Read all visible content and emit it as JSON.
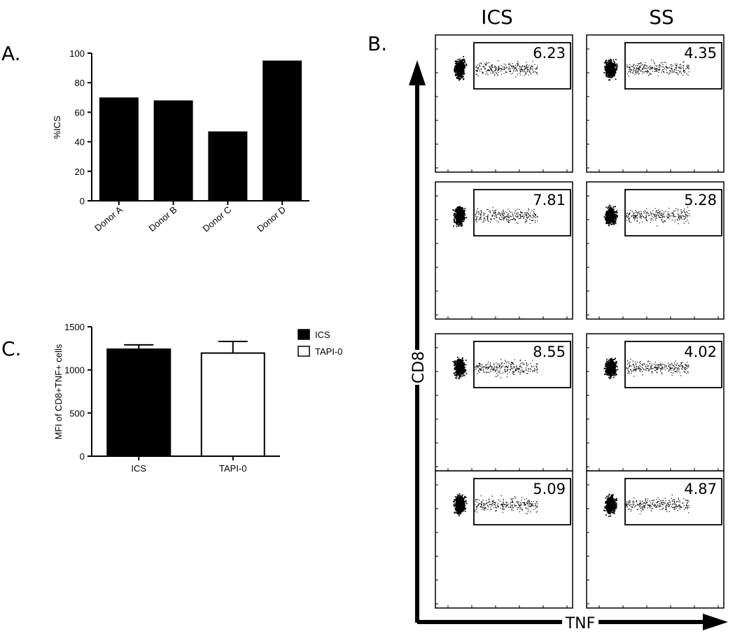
{
  "panels": {
    "a": "A.",
    "b": "B.",
    "c": "C."
  },
  "chart_data": [
    {
      "type": "bar",
      "categories": [
        "Donor A",
        "Donor B",
        "Donor C",
        "Donor D"
      ],
      "values": [
        70,
        68,
        47,
        95
      ],
      "xlabel": "",
      "ylabel": "%ICS",
      "ylim": [
        0,
        100
      ],
      "yticks": [
        0,
        20,
        40,
        60,
        80,
        100
      ],
      "grid": false,
      "bar_color": "#000000"
    },
    {
      "type": "bar",
      "categories": [
        "ICS",
        "TAPI-0"
      ],
      "series": [
        {
          "name": "ICS",
          "values": [
            1240,
            null
          ],
          "error": [
            50,
            null
          ],
          "fill": "#000000"
        },
        {
          "name": "TAPI-0",
          "values": [
            null,
            1195
          ],
          "error": [
            null,
            135
          ],
          "fill": "#ffffff"
        }
      ],
      "ylabel": "MFI of CD8+TNF+ cells",
      "ylim": [
        0,
        1500
      ],
      "yticks": [
        0,
        500,
        1000,
        1500
      ],
      "legend": "top-right",
      "grid": false
    }
  ],
  "flow": {
    "columns": [
      "ICS",
      "SS"
    ],
    "x_axis_label": "TNF",
    "y_axis_label": "CD8",
    "gates": [
      [
        "6.23",
        "4.35"
      ],
      [
        "7.81",
        "5.28"
      ],
      [
        "8.55",
        "4.02"
      ],
      [
        "5.09",
        "4.87"
      ]
    ]
  }
}
